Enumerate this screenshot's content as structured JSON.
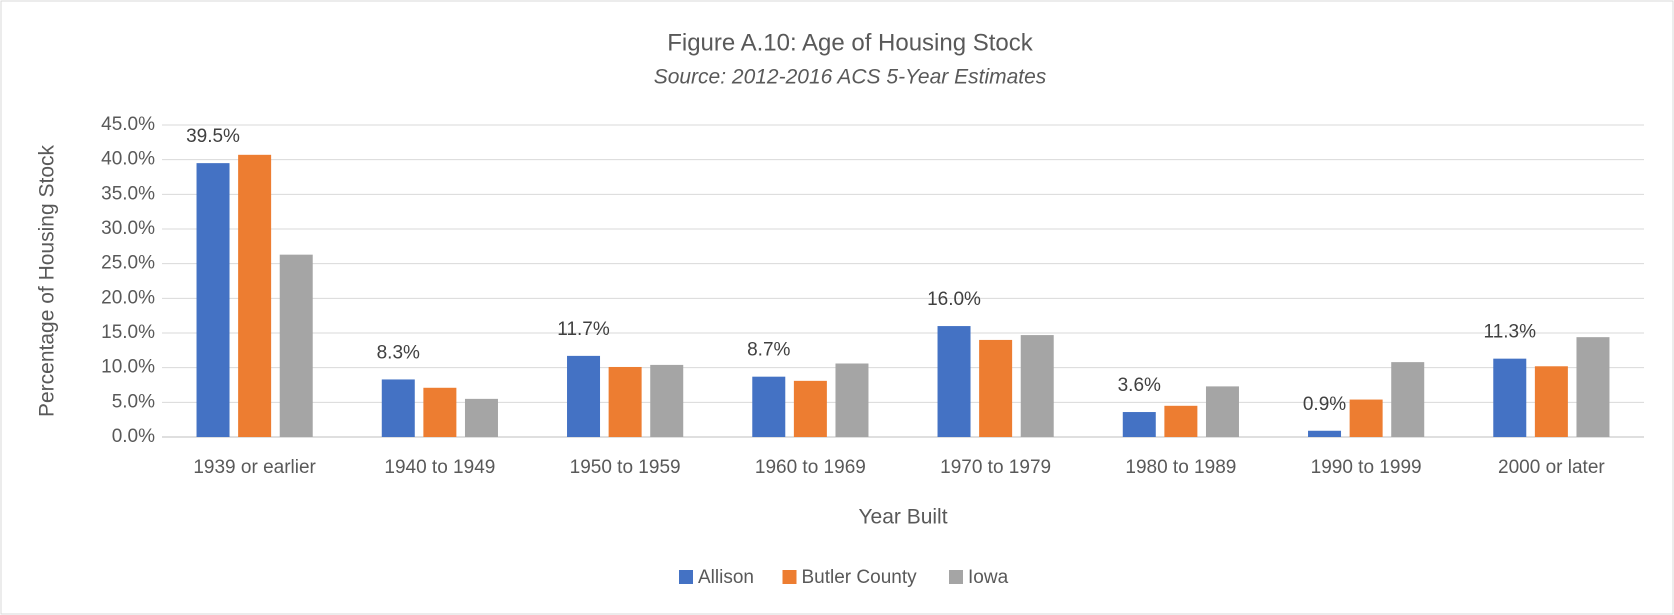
{
  "chart_data": {
    "type": "bar",
    "title": "Figure A.10: Age of Housing Stock",
    "subtitle": "Source: 2012-2016 ACS 5-Year Estimates",
    "x_label": "Year Built",
    "y_label": "Percentage of Housing Stock",
    "categories": [
      "1939 or earlier",
      "1940 to 1949",
      "1950 to 1959",
      "1960 to 1969",
      "1970 to 1979",
      "1980 to 1989",
      "1990 to 1999",
      "2000 or later"
    ],
    "series": [
      {
        "name": "Allison",
        "color": "#4472c4",
        "values": [
          39.5,
          8.3,
          11.7,
          8.7,
          16.0,
          3.6,
          0.9,
          11.3
        ],
        "value_labels": [
          "39.5%",
          "8.3%",
          "11.7%",
          "8.7%",
          "16.0%",
          "3.6%",
          "0.9%",
          "11.3%"
        ]
      },
      {
        "name": "Butler County",
        "color": "#ed7d31",
        "values": [
          40.7,
          7.1,
          10.1,
          8.1,
          14.0,
          4.5,
          5.4,
          10.2
        ]
      },
      {
        "name": "Iowa",
        "color": "#a5a5a5",
        "values": [
          26.3,
          5.5,
          10.4,
          10.6,
          14.7,
          7.3,
          10.8,
          14.4
        ]
      }
    ],
    "ylim": [
      0,
      45
    ],
    "yticks": [
      {
        "value": 0,
        "label": "0.0%"
      },
      {
        "value": 5,
        "label": "5.0%"
      },
      {
        "value": 10,
        "label": "10.0%"
      },
      {
        "value": 15,
        "label": "15.0%"
      },
      {
        "value": 20,
        "label": "20.0%"
      },
      {
        "value": 25,
        "label": "25.0%"
      },
      {
        "value": 30,
        "label": "30.0%"
      },
      {
        "value": 35,
        "label": "35.0%"
      },
      {
        "value": 40,
        "label": "40.0%"
      },
      {
        "value": 45,
        "label": "45.0%"
      }
    ],
    "grid": true,
    "legend": "bottom"
  }
}
